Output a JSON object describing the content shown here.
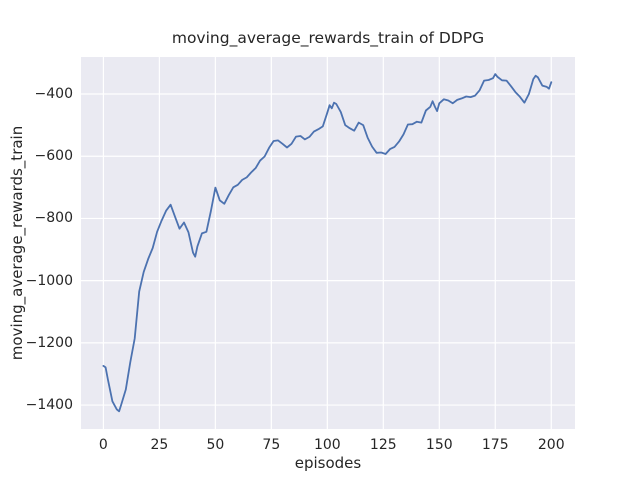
{
  "chart_data": {
    "type": "line",
    "title": "moving_average_rewards_train of DDPG",
    "xlabel": "episodes",
    "ylabel": "moving_average_rewards_train",
    "x_ticks": [
      0,
      25,
      50,
      75,
      100,
      125,
      150,
      175,
      200
    ],
    "x_tick_labels": [
      "0",
      "25",
      "50",
      "75",
      "100",
      "125",
      "150",
      "175",
      "200"
    ],
    "y_ticks": [
      -400,
      -600,
      -800,
      -1000,
      -1200,
      -1400
    ],
    "y_tick_labels": [
      "−400",
      "−600",
      "−800",
      "−1000",
      "−1200",
      "−1400"
    ],
    "xlim": [
      -10,
      210.6
    ],
    "ylim": [
      -1477,
      -281
    ],
    "grid": true,
    "legend": false,
    "colors": {
      "line": "#4c72b0",
      "plot_background": "#eaeaf2",
      "grid": "#ffffff",
      "text": "#262626",
      "figure_background": "#ffffff"
    },
    "series": [
      {
        "name": "moving_average_rewards_train",
        "points": [
          [
            0,
            -1274
          ],
          [
            1,
            -1279
          ],
          [
            2,
            -1318
          ],
          [
            4,
            -1388
          ],
          [
            6,
            -1414
          ],
          [
            7,
            -1420
          ],
          [
            8,
            -1398
          ],
          [
            10,
            -1350
          ],
          [
            12,
            -1262
          ],
          [
            14,
            -1186
          ],
          [
            16,
            -1035
          ],
          [
            18,
            -972
          ],
          [
            20,
            -930
          ],
          [
            22,
            -895
          ],
          [
            24,
            -843
          ],
          [
            26,
            -807
          ],
          [
            28,
            -775
          ],
          [
            30,
            -756
          ],
          [
            32,
            -795
          ],
          [
            34,
            -833
          ],
          [
            36,
            -813
          ],
          [
            38,
            -845
          ],
          [
            40,
            -910
          ],
          [
            41,
            -923
          ],
          [
            42,
            -890
          ],
          [
            44,
            -848
          ],
          [
            46,
            -843
          ],
          [
            48,
            -776
          ],
          [
            50,
            -701
          ],
          [
            52,
            -742
          ],
          [
            54,
            -753
          ],
          [
            56,
            -725
          ],
          [
            58,
            -700
          ],
          [
            60,
            -692
          ],
          [
            62,
            -676
          ],
          [
            64,
            -668
          ],
          [
            66,
            -652
          ],
          [
            68,
            -638
          ],
          [
            70,
            -614
          ],
          [
            72,
            -601
          ],
          [
            74,
            -573
          ],
          [
            76,
            -551
          ],
          [
            78,
            -549
          ],
          [
            80,
            -560
          ],
          [
            82,
            -572
          ],
          [
            84,
            -560
          ],
          [
            86,
            -537
          ],
          [
            88,
            -535
          ],
          [
            90,
            -546
          ],
          [
            92,
            -538
          ],
          [
            94,
            -521
          ],
          [
            96,
            -513
          ],
          [
            98,
            -504
          ],
          [
            100,
            -460
          ],
          [
            101,
            -436
          ],
          [
            102,
            -446
          ],
          [
            103,
            -428
          ],
          [
            104,
            -432
          ],
          [
            106,
            -458
          ],
          [
            108,
            -500
          ],
          [
            110,
            -510
          ],
          [
            112,
            -518
          ],
          [
            114,
            -492
          ],
          [
            116,
            -500
          ],
          [
            118,
            -540
          ],
          [
            120,
            -569
          ],
          [
            122,
            -589
          ],
          [
            124,
            -588
          ],
          [
            126,
            -593
          ],
          [
            128,
            -577
          ],
          [
            130,
            -570
          ],
          [
            132,
            -553
          ],
          [
            134,
            -530
          ],
          [
            136,
            -498
          ],
          [
            138,
            -497
          ],
          [
            140,
            -489
          ],
          [
            142,
            -492
          ],
          [
            144,
            -453
          ],
          [
            146,
            -441
          ],
          [
            147,
            -423
          ],
          [
            148,
            -440
          ],
          [
            149,
            -455
          ],
          [
            150,
            -430
          ],
          [
            152,
            -417
          ],
          [
            154,
            -421
          ],
          [
            156,
            -430
          ],
          [
            158,
            -419
          ],
          [
            160,
            -414
          ],
          [
            162,
            -408
          ],
          [
            164,
            -410
          ],
          [
            166,
            -405
          ],
          [
            168,
            -388
          ],
          [
            170,
            -357
          ],
          [
            172,
            -355
          ],
          [
            174,
            -349
          ],
          [
            175,
            -336
          ],
          [
            176,
            -345
          ],
          [
            178,
            -356
          ],
          [
            180,
            -357
          ],
          [
            182,
            -375
          ],
          [
            184,
            -394
          ],
          [
            186,
            -409
          ],
          [
            188,
            -428
          ],
          [
            190,
            -400
          ],
          [
            192,
            -352
          ],
          [
            193,
            -341
          ],
          [
            194,
            -346
          ],
          [
            196,
            -373
          ],
          [
            198,
            -377
          ],
          [
            199,
            -383
          ],
          [
            200,
            -362
          ]
        ]
      }
    ]
  }
}
